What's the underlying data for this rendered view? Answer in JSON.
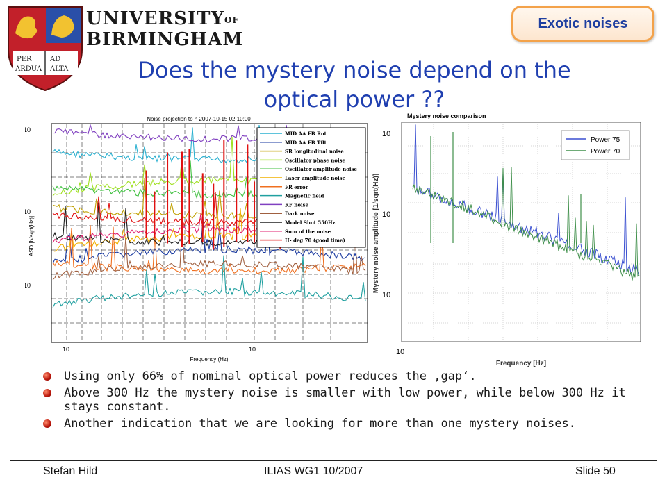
{
  "header": {
    "university_line1": "UNIVERSITY",
    "university_of": "OF",
    "university_line2": "BIRMINGHAM",
    "crest_text": [
      "PER",
      "AD",
      "ARDUA",
      "ALTA"
    ],
    "badge": "Exotic noises",
    "title": "Does the mystery noise depend on the optical power ??"
  },
  "chart_data": [
    {
      "type": "line",
      "title": "Noise projection to h 2007-10-15 02:10:00",
      "xlabel": "Frequency (Hz)",
      "ylabel": "ASD [h/sqrt(Hz)]",
      "x_scale": "log",
      "y_scale": "log",
      "x_ticks": [
        "10",
        "10"
      ],
      "y_ticks": [
        "10",
        "10",
        "10"
      ],
      "grid": true,
      "legend_position": "top-right",
      "legend": [
        {
          "name": "MID AA FB Rot",
          "color": "#2ab0d0"
        },
        {
          "name": "MID AA FB Tilt",
          "color": "#1a3aa0"
        },
        {
          "name": "SR longitudinal noise",
          "color": "#c0a000"
        },
        {
          "name": "Oscillator phase noise",
          "color": "#a0e020"
        },
        {
          "name": "Oscillator amplitude noise",
          "color": "#40c040"
        },
        {
          "name": "Laser amplitude noise",
          "color": "#f0b000"
        },
        {
          "name": "FR error",
          "color": "#f07020"
        },
        {
          "name": "Magnetic field",
          "color": "#20a0a0"
        },
        {
          "name": "RF noise",
          "color": "#8040c0"
        },
        {
          "name": "Dark noise",
          "color": "#a06040"
        },
        {
          "name": "Model Shot 550Hz",
          "color": "#202020"
        },
        {
          "name": "Sum of the noise",
          "color": "#e02070"
        },
        {
          "name": "H- deg 70 (good time)",
          "color": "#e01010"
        }
      ]
    },
    {
      "type": "line",
      "title": "Mystery noise comparison",
      "xlabel": "Frequency [Hz]",
      "ylabel": "Mystery noise amplitude [1/sqrt(Hz)]",
      "x_scale": "log",
      "y_scale": "log",
      "x_ticks": [
        "10"
      ],
      "y_ticks": [
        "10",
        "10",
        "10"
      ],
      "grid": true,
      "legend_position": "top-right",
      "series": [
        {
          "name": "Power 75",
          "color": "#3a4fd0"
        },
        {
          "name": "Power 70",
          "color": "#3f8f4a"
        }
      ]
    }
  ],
  "bullets": [
    "Using only 66% of nominal optical power reduces the ‚gap‘.",
    "Above 300 Hz the mystery noise is smaller with low power, while below 300 Hz it stays constant.",
    "Another indication that we are looking for more than one mystery noises."
  ],
  "footer": {
    "author": "Stefan Hild",
    "event": "ILIAS WG1 10/2007",
    "slide": "Slide 50"
  }
}
